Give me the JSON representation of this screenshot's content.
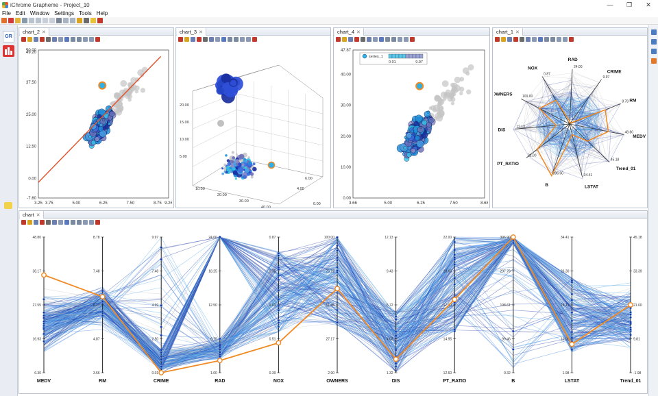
{
  "window": {
    "title": "iChrome Grapheme - Project_10",
    "min": "—",
    "max": "❐",
    "close": "✕"
  },
  "menu": [
    "File",
    "Edit",
    "Window",
    "Settings",
    "Tools",
    "Help"
  ],
  "sidebar": {
    "gr_label": "GR"
  },
  "panels": [
    {
      "tab": "chart_2",
      "close": "✕"
    },
    {
      "tab": "chart_3",
      "close": "✕"
    },
    {
      "tab": "chart_4",
      "close": "✕"
    },
    {
      "tab": "chart_1",
      "close": "✕"
    },
    {
      "tab": "chart",
      "close": "✕"
    }
  ],
  "chart_data": [
    {
      "type": "scatter",
      "name": "chart_2",
      "xticks": [
        "3.25",
        "3.75",
        "5.00",
        "6.25",
        "7.50",
        "8.75",
        "9.26"
      ],
      "yticks": [
        "50.00",
        "49.20",
        "37.50",
        "25.00",
        "12.50",
        "0.00",
        "-7.60"
      ],
      "xlim": [
        3.25,
        9.26
      ],
      "ylim": [
        -7.6,
        50.0
      ],
      "regression_line": {
        "from": [
          3.25,
          -1.5
        ],
        "to": [
          8.9,
          47.5
        ]
      },
      "highlight_point": [
        6.2,
        36.2
      ],
      "colors": {
        "line": "#e0502a",
        "highlight": "#f08a24"
      }
    },
    {
      "type": "scatter3d",
      "name": "chart_3",
      "zticks": [
        "20.00",
        "15.00",
        "10.00",
        "5.00"
      ],
      "xticks": [
        "10.00",
        "20.00",
        "30.00",
        "40.00"
      ],
      "yticks": [
        "4.00",
        "6.00",
        "0.00"
      ]
    },
    {
      "type": "scatter",
      "name": "chart_4",
      "legend": {
        "series": "series_1",
        "min": "0.01",
        "max": "9.97"
      },
      "xticks": [
        "3.66",
        "5.00",
        "6.25",
        "7.50",
        "8.68"
      ],
      "yticks": [
        "47.87",
        "40.00",
        "30.00",
        "20.00",
        "10.00",
        "0.00"
      ],
      "xlim": [
        3.66,
        8.68
      ],
      "ylim": [
        0.0,
        47.87
      ],
      "highlight_point": [
        6.2,
        36.2
      ]
    },
    {
      "type": "radar",
      "name": "chart_1",
      "axes": [
        {
          "name": "RAD",
          "max": "24.00"
        },
        {
          "name": "CRIME",
          "max": "9.97"
        },
        {
          "name": "RM",
          "max": "8.78"
        },
        {
          "name": "MEDV",
          "max": "48.80"
        },
        {
          "name": "Trend_01",
          "max": "45.18"
        },
        {
          "name": "LSTAT",
          "max": "34.41"
        },
        {
          "name": "B",
          "max": "396.90"
        },
        {
          "name": "PT_RATIO",
          "max": "22.00"
        },
        {
          "name": "DIS",
          "max": "12.13"
        },
        {
          "name": "OWNERS",
          "max": "100.00"
        },
        {
          "name": "NOX",
          "max": "0.87"
        }
      ]
    },
    {
      "type": "parallel_coordinates",
      "name": "chart",
      "axes": [
        {
          "name": "MEDV",
          "ticks": [
            "48.80",
            "38.17",
            "27.55",
            "16.93",
            "6.30"
          ]
        },
        {
          "name": "RM",
          "ticks": [
            "8.78",
            "7.48",
            "6.17",
            "4.87",
            "3.56"
          ]
        },
        {
          "name": "CRIME",
          "ticks": [
            "9.97",
            "7.48",
            "4.99",
            "2.50",
            "0.01"
          ]
        },
        {
          "name": "RAD",
          "ticks": [
            "24.00",
            "18.25",
            "12.50",
            "6.75",
            "1.00"
          ]
        },
        {
          "name": "NOX",
          "ticks": [
            "0.87",
            "0.75",
            "0.63",
            "0.51",
            "0.39"
          ]
        },
        {
          "name": "OWNERS",
          "ticks": [
            "100.00",
            "75.72",
            "51.45",
            "27.17",
            "2.90"
          ]
        },
        {
          "name": "DIS",
          "ticks": [
            "12.13",
            "9.43",
            "6.72",
            "4.02",
            "1.32"
          ]
        },
        {
          "name": "PT_RATIO",
          "ticks": [
            "22.00",
            "19.65",
            "17.30",
            "14.95",
            "12.60"
          ]
        },
        {
          "name": "B",
          "ticks": [
            "396.90",
            "297.76",
            "198.61",
            "99.46",
            "0.32"
          ]
        },
        {
          "name": "LSTAT",
          "ticks": [
            "34.41",
            "26.30",
            "18.19",
            "10.08",
            "1.98"
          ]
        },
        {
          "name": "Trend_01",
          "ticks": [
            "45.18",
            "33.39",
            "21.60",
            "9.81",
            "-1.98"
          ]
        }
      ],
      "highlighted_record": [
        36.2,
        6.5,
        0.02,
        3.0,
        0.46,
        63.0,
        2.7,
        18.5,
        396.9,
        5.5,
        21.6
      ],
      "colors": {
        "line_dark": "#1f3aa8",
        "line_light": "#4aa3e6",
        "highlight": "#f08a24"
      }
    }
  ]
}
